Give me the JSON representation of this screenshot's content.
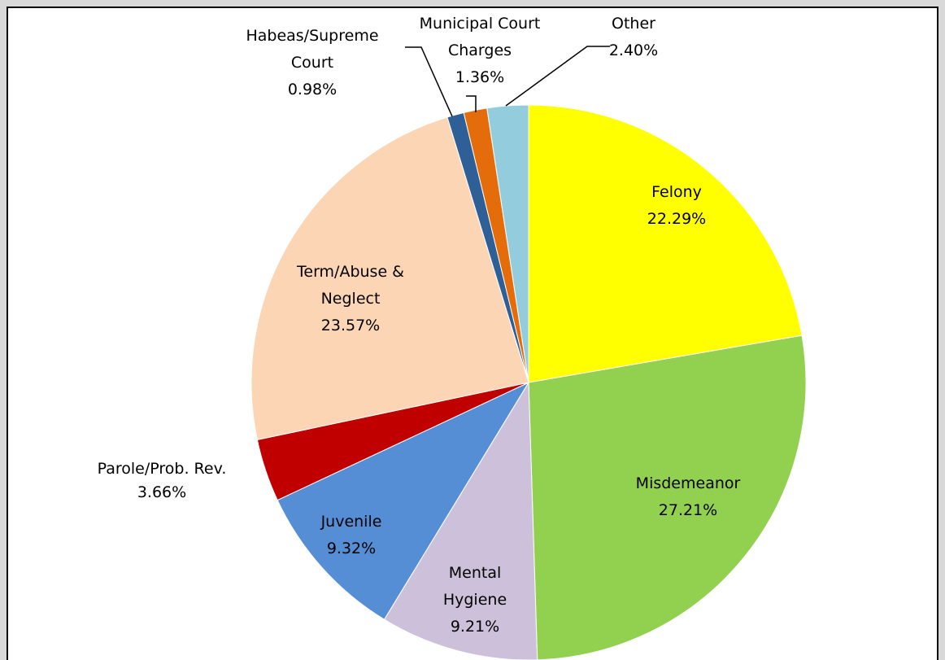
{
  "chart_data": {
    "type": "pie",
    "categories": [
      "Felony",
      "Misdemeanor",
      "Mental Hygiene",
      "Juvenile",
      "Parole/Prob. Rev.",
      "Term/Abuse & Neglect",
      "Habeas/Supreme Court",
      "Municipal Court Charges",
      "Other"
    ],
    "values": [
      22.29,
      27.21,
      9.21,
      9.32,
      3.66,
      23.57,
      0.98,
      1.36,
      2.4
    ],
    "value_labels": [
      "22.29%",
      "27.21%",
      "9.21%",
      "9.32%",
      "3.66%",
      "23.57%",
      "0.98%",
      "1.36%",
      "2.40%"
    ],
    "colors": [
      "#ffff00",
      "#92d050",
      "#ccc0da",
      "#558ed5",
      "#c00000",
      "#fcd5b5",
      "#2e5f96",
      "#e46c0a",
      "#93cddd"
    ]
  }
}
